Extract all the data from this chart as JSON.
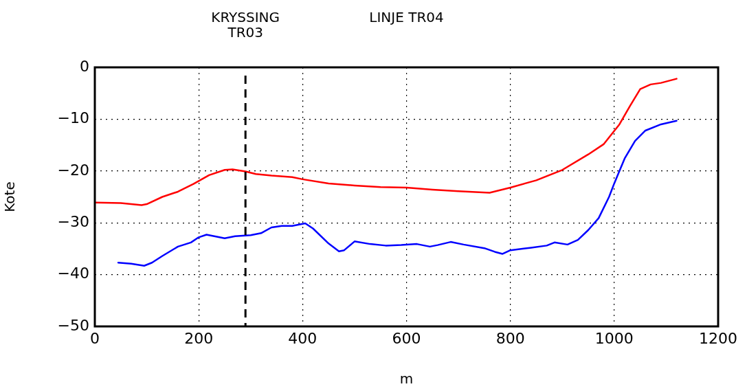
{
  "chart_data": {
    "type": "line",
    "xlabel": "m",
    "ylabel": "Kote",
    "xlim": [
      0,
      1200
    ],
    "xticks": [
      0,
      200,
      400,
      600,
      800,
      1000,
      1200
    ],
    "ylim": [
      -50,
      0
    ],
    "yticks": [
      {
        "value": -50,
        "label": "−50"
      },
      {
        "value": -40,
        "label": "−40"
      },
      {
        "value": -30,
        "label": "−30"
      },
      {
        "value": -20,
        "label": "−20"
      },
      {
        "value": -10,
        "label": "−10"
      },
      {
        "value": 0,
        "label": "0"
      }
    ],
    "grid": true,
    "legend": false,
    "marker": "none",
    "line_style": "solid",
    "ref_lines": [
      {
        "axis": "x",
        "value": 290,
        "label": "KRYSSING TR03",
        "color": "#000000",
        "line_style": "dashed"
      }
    ],
    "annotations": [
      "LINJE TR04"
    ],
    "series": [
      {
        "color": "#ff0000",
        "x": [
          0,
          50,
          90,
          100,
          130,
          160,
          190,
          220,
          250,
          265,
          290,
          310,
          340,
          380,
          400,
          450,
          500,
          550,
          600,
          650,
          700,
          760,
          800,
          850,
          900,
          950,
          980,
          1010,
          1030,
          1050,
          1070,
          1090,
          1120
        ],
        "values": [
          -26.1,
          -26.2,
          -26.6,
          -26.4,
          -25,
          -24,
          -22.5,
          -20.8,
          -19.8,
          -19.7,
          -20.1,
          -20.6,
          -20.9,
          -21.2,
          -21.6,
          -22.4,
          -22.8,
          -23.1,
          -23.2,
          -23.6,
          -23.9,
          -24.2,
          -23.2,
          -21.8,
          -19.8,
          -16.8,
          -14.8,
          -11,
          -7.5,
          -4.2,
          -3.3,
          -3,
          -2.2
        ]
      },
      {
        "color": "#0000ff",
        "x": [
          45,
          70,
          95,
          110,
          130,
          160,
          185,
          200,
          215,
          235,
          250,
          270,
          300,
          320,
          340,
          360,
          380,
          405,
          420,
          450,
          470,
          480,
          500,
          530,
          560,
          590,
          620,
          645,
          660,
          685,
          710,
          750,
          770,
          785,
          800,
          840,
          870,
          885,
          910,
          930,
          950,
          970,
          990,
          1000,
          1020,
          1040,
          1060,
          1090,
          1120
        ],
        "values": [
          -37.7,
          -37.9,
          -38.3,
          -37.7,
          -36.4,
          -34.6,
          -33.8,
          -32.8,
          -32.3,
          -32.7,
          -33,
          -32.6,
          -32.4,
          -32,
          -30.9,
          -30.6,
          -30.6,
          -30.1,
          -31.1,
          -34,
          -35.5,
          -35.3,
          -33.6,
          -34.1,
          -34.4,
          -34.3,
          -34.1,
          -34.6,
          -34.3,
          -33.7,
          -34.2,
          -34.9,
          -35.6,
          -36,
          -35.3,
          -34.8,
          -34.4,
          -33.8,
          -34.2,
          -33.3,
          -31.4,
          -29.1,
          -25,
          -22.4,
          -17.6,
          -14.2,
          -12.2,
          -11,
          -10.3
        ]
      }
    ]
  }
}
